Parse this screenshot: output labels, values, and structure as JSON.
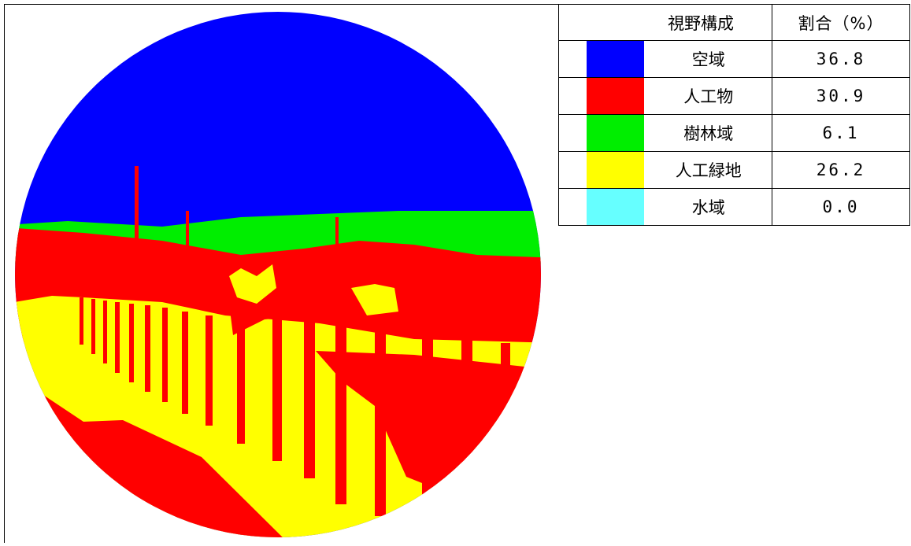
{
  "table": {
    "header": [
      "視野構成",
      "割合（%）"
    ],
    "rows": [
      {
        "color": "#0000ff",
        "label": "空域",
        "value": "36.8"
      },
      {
        "color": "#ff0000",
        "label": "人工物",
        "value": "30.9"
      },
      {
        "color": "#00ee00",
        "label": "樹林域",
        "value": "6.1"
      },
      {
        "color": "#ffff00",
        "label": "人工緑地",
        "value": "26.2"
      },
      {
        "color": "#66ffff",
        "label": "水域",
        "value": "0.0"
      }
    ]
  }
}
